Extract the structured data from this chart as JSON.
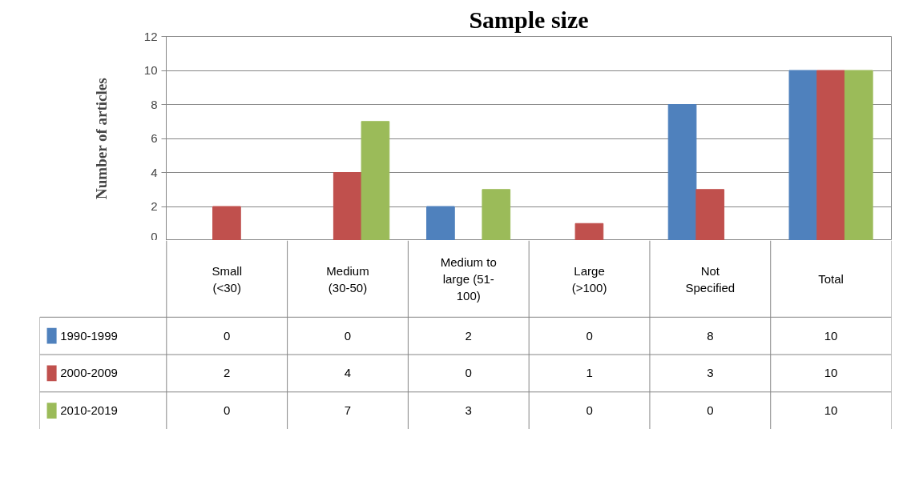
{
  "chart_data": {
    "type": "bar",
    "title": "Sample size",
    "ylabel": "Number of articles",
    "categories": [
      "Small\n(<30)",
      "Medium\n(30-50)",
      "Medium to\nlarge (51-\n100)",
      "Large\n(>100)",
      "Not\nSpecified",
      "Total"
    ],
    "series": [
      {
        "name": "1990-1999",
        "color": "#4f81bd",
        "values": [
          0,
          0,
          2,
          0,
          8,
          10
        ]
      },
      {
        "name": "2000-2009",
        "color": "#c0504d",
        "values": [
          2,
          4,
          0,
          1,
          3,
          10
        ]
      },
      {
        "name": "2010-2019",
        "color": "#9bbb59",
        "values": [
          0,
          7,
          3,
          0,
          0,
          10
        ]
      }
    ],
    "ylim": [
      0,
      12
    ],
    "yticks": [
      0,
      2,
      4,
      6,
      8,
      10,
      12
    ],
    "grid": "y",
    "legend": "left",
    "data_labels": true
  }
}
